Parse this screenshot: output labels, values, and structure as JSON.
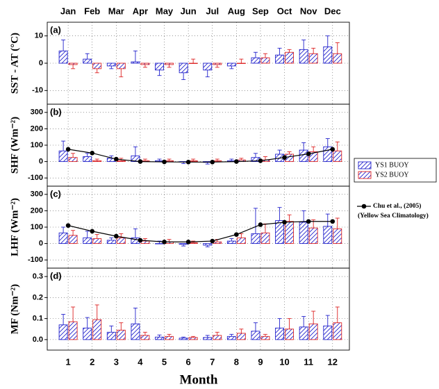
{
  "chart_data": [
    {
      "type": "bar",
      "panel_label": "(a)",
      "ylabel": "SST - AT (°C)",
      "x": [
        1,
        2,
        3,
        4,
        5,
        6,
        7,
        8,
        9,
        10,
        11,
        12
      ],
      "xlim": [
        0.13,
        12.7
      ],
      "xticks": [
        {
          "value": 1,
          "label": "Jan"
        },
        {
          "value": 2,
          "label": "Feb"
        },
        {
          "value": 3,
          "label": "Mar"
        },
        {
          "value": 4,
          "label": "Apr"
        },
        {
          "value": 5,
          "label": "May"
        },
        {
          "value": 6,
          "label": "Jun"
        },
        {
          "value": 7,
          "label": "Jul"
        },
        {
          "value": 8,
          "label": "Aug"
        },
        {
          "value": 9,
          "label": "Sep"
        },
        {
          "value": 10,
          "label": "Oct"
        },
        {
          "value": 11,
          "label": "Nov"
        },
        {
          "value": 12,
          "label": "Dec"
        }
      ],
      "ylim": [
        -15,
        15
      ],
      "yticks": [
        -10,
        0,
        10
      ],
      "grid": true,
      "series": [
        {
          "name": "YS1 BUOY",
          "type": "bar",
          "color": "#2222cc",
          "hatch": "single",
          "values": [
            4.5,
            1.5,
            -1,
            0.5,
            -2.5,
            -3.5,
            -2.5,
            -1,
            2,
            3,
            5,
            6
          ],
          "errors": [
            4,
            2,
            1,
            4,
            2,
            2.5,
            2.5,
            1,
            2,
            2.5,
            3.5,
            4
          ]
        },
        {
          "name": "YS2 BUOY",
          "type": "bar",
          "color": "#dd2222",
          "hatch": "cross",
          "values": [
            -0.5,
            -2,
            -2,
            -0.5,
            -0.5,
            0,
            -0.5,
            0,
            2,
            4,
            3.5,
            3.5
          ],
          "errors": [
            1.5,
            1.5,
            3,
            1,
            1,
            1.5,
            1,
            1.5,
            1.5,
            1,
            2,
            4
          ]
        }
      ]
    },
    {
      "type": "bar",
      "panel_label": "(b)",
      "ylabel": "SHF (Wm⁻²)",
      "x": [
        1,
        2,
        3,
        4,
        5,
        6,
        7,
        8,
        9,
        10,
        11,
        12
      ],
      "xlim": [
        0.13,
        12.7
      ],
      "xticks": [
        1,
        2,
        3,
        4,
        5,
        6,
        7,
        8,
        9,
        10,
        11,
        12
      ],
      "ylim": [
        -150,
        350
      ],
      "yticks": [
        -100,
        0,
        100,
        200,
        300
      ],
      "grid": true,
      "series": [
        {
          "type": "bar",
          "color": "#2222cc",
          "hatch": "single",
          "values": [
            65,
            30,
            20,
            35,
            5,
            -2,
            -5,
            5,
            25,
            45,
            70,
            90
          ],
          "errors": [
            60,
            20,
            15,
            55,
            10,
            10,
            10,
            10,
            25,
            25,
            45,
            50
          ]
        },
        {
          "type": "bar",
          "color": "#dd2222",
          "hatch": "cross",
          "values": [
            25,
            5,
            5,
            5,
            5,
            5,
            5,
            10,
            10,
            45,
            60,
            65
          ],
          "errors": [
            25,
            10,
            15,
            10,
            10,
            10,
            10,
            10,
            20,
            15,
            30,
            55
          ]
        },
        {
          "name": "Chu et al., (2005)",
          "note": "(Yellow Sea Climatology)",
          "type": "line",
          "color": "#000000",
          "values": [
            75,
            52,
            15,
            0,
            -2,
            -3,
            -3,
            0,
            5,
            25,
            47,
            75
          ]
        }
      ]
    },
    {
      "type": "bar",
      "panel_label": "(c)",
      "ylabel": "LHF (Wm⁻²)",
      "x": [
        1,
        2,
        3,
        4,
        5,
        6,
        7,
        8,
        9,
        10,
        11,
        12
      ],
      "xlim": [
        0.13,
        12.7
      ],
      "xticks": [
        1,
        2,
        3,
        4,
        5,
        6,
        7,
        8,
        9,
        10,
        11,
        12
      ],
      "ylim": [
        -150,
        350
      ],
      "yticks": [
        -100,
        0,
        100,
        200,
        300
      ],
      "grid": true,
      "series": [
        {
          "type": "bar",
          "color": "#2222cc",
          "hatch": "single",
          "values": [
            65,
            35,
            20,
            35,
            0,
            -5,
            -10,
            15,
            60,
            140,
            130,
            105
          ],
          "errors": [
            35,
            40,
            15,
            55,
            15,
            10,
            10,
            15,
            155,
            80,
            70,
            75
          ]
        },
        {
          "type": "bar",
          "color": "#dd2222",
          "hatch": "cross",
          "values": [
            50,
            30,
            35,
            15,
            10,
            5,
            10,
            35,
            65,
            135,
            95,
            90
          ],
          "errors": [
            30,
            25,
            25,
            15,
            15,
            10,
            15,
            25,
            55,
            40,
            50,
            65
          ]
        },
        {
          "type": "line",
          "color": "#000000",
          "values": [
            110,
            75,
            45,
            20,
            10,
            10,
            15,
            55,
            115,
            130,
            135,
            135
          ]
        }
      ]
    },
    {
      "type": "bar",
      "panel_label": "(d)",
      "ylabel": "MF (Nm⁻²)",
      "xlabel": "Month",
      "x": [
        1,
        2,
        3,
        4,
        5,
        6,
        7,
        8,
        9,
        10,
        11,
        12
      ],
      "xlim": [
        0.13,
        12.7
      ],
      "xticks": [
        1,
        2,
        3,
        4,
        5,
        6,
        7,
        8,
        9,
        10,
        11,
        12
      ],
      "ylim": [
        -0.05,
        0.34
      ],
      "yticks": [
        {
          "value": 0,
          "label": "0.0"
        },
        0.1,
        0.2,
        0.3
      ],
      "grid": true,
      "series": [
        {
          "type": "bar",
          "color": "#2222cc",
          "hatch": "single",
          "values": [
            0.07,
            0.055,
            0.035,
            0.075,
            0.012,
            0.007,
            0.01,
            0.015,
            0.04,
            0.055,
            0.06,
            0.065
          ],
          "errors": [
            0.05,
            0.05,
            0.03,
            0.075,
            0.01,
            0.005,
            0.01,
            0.01,
            0.04,
            0.045,
            0.05,
            0.05
          ]
        },
        {
          "type": "bar",
          "color": "#dd2222",
          "hatch": "cross",
          "values": [
            0.085,
            0.095,
            0.045,
            0.02,
            0.015,
            0.01,
            0.02,
            0.03,
            0.015,
            0.05,
            0.075,
            0.08
          ],
          "errors": [
            0.07,
            0.07,
            0.035,
            0.015,
            0.01,
            0.005,
            0.015,
            0.02,
            0.01,
            0.05,
            0.06,
            0.075
          ]
        }
      ]
    }
  ]
}
